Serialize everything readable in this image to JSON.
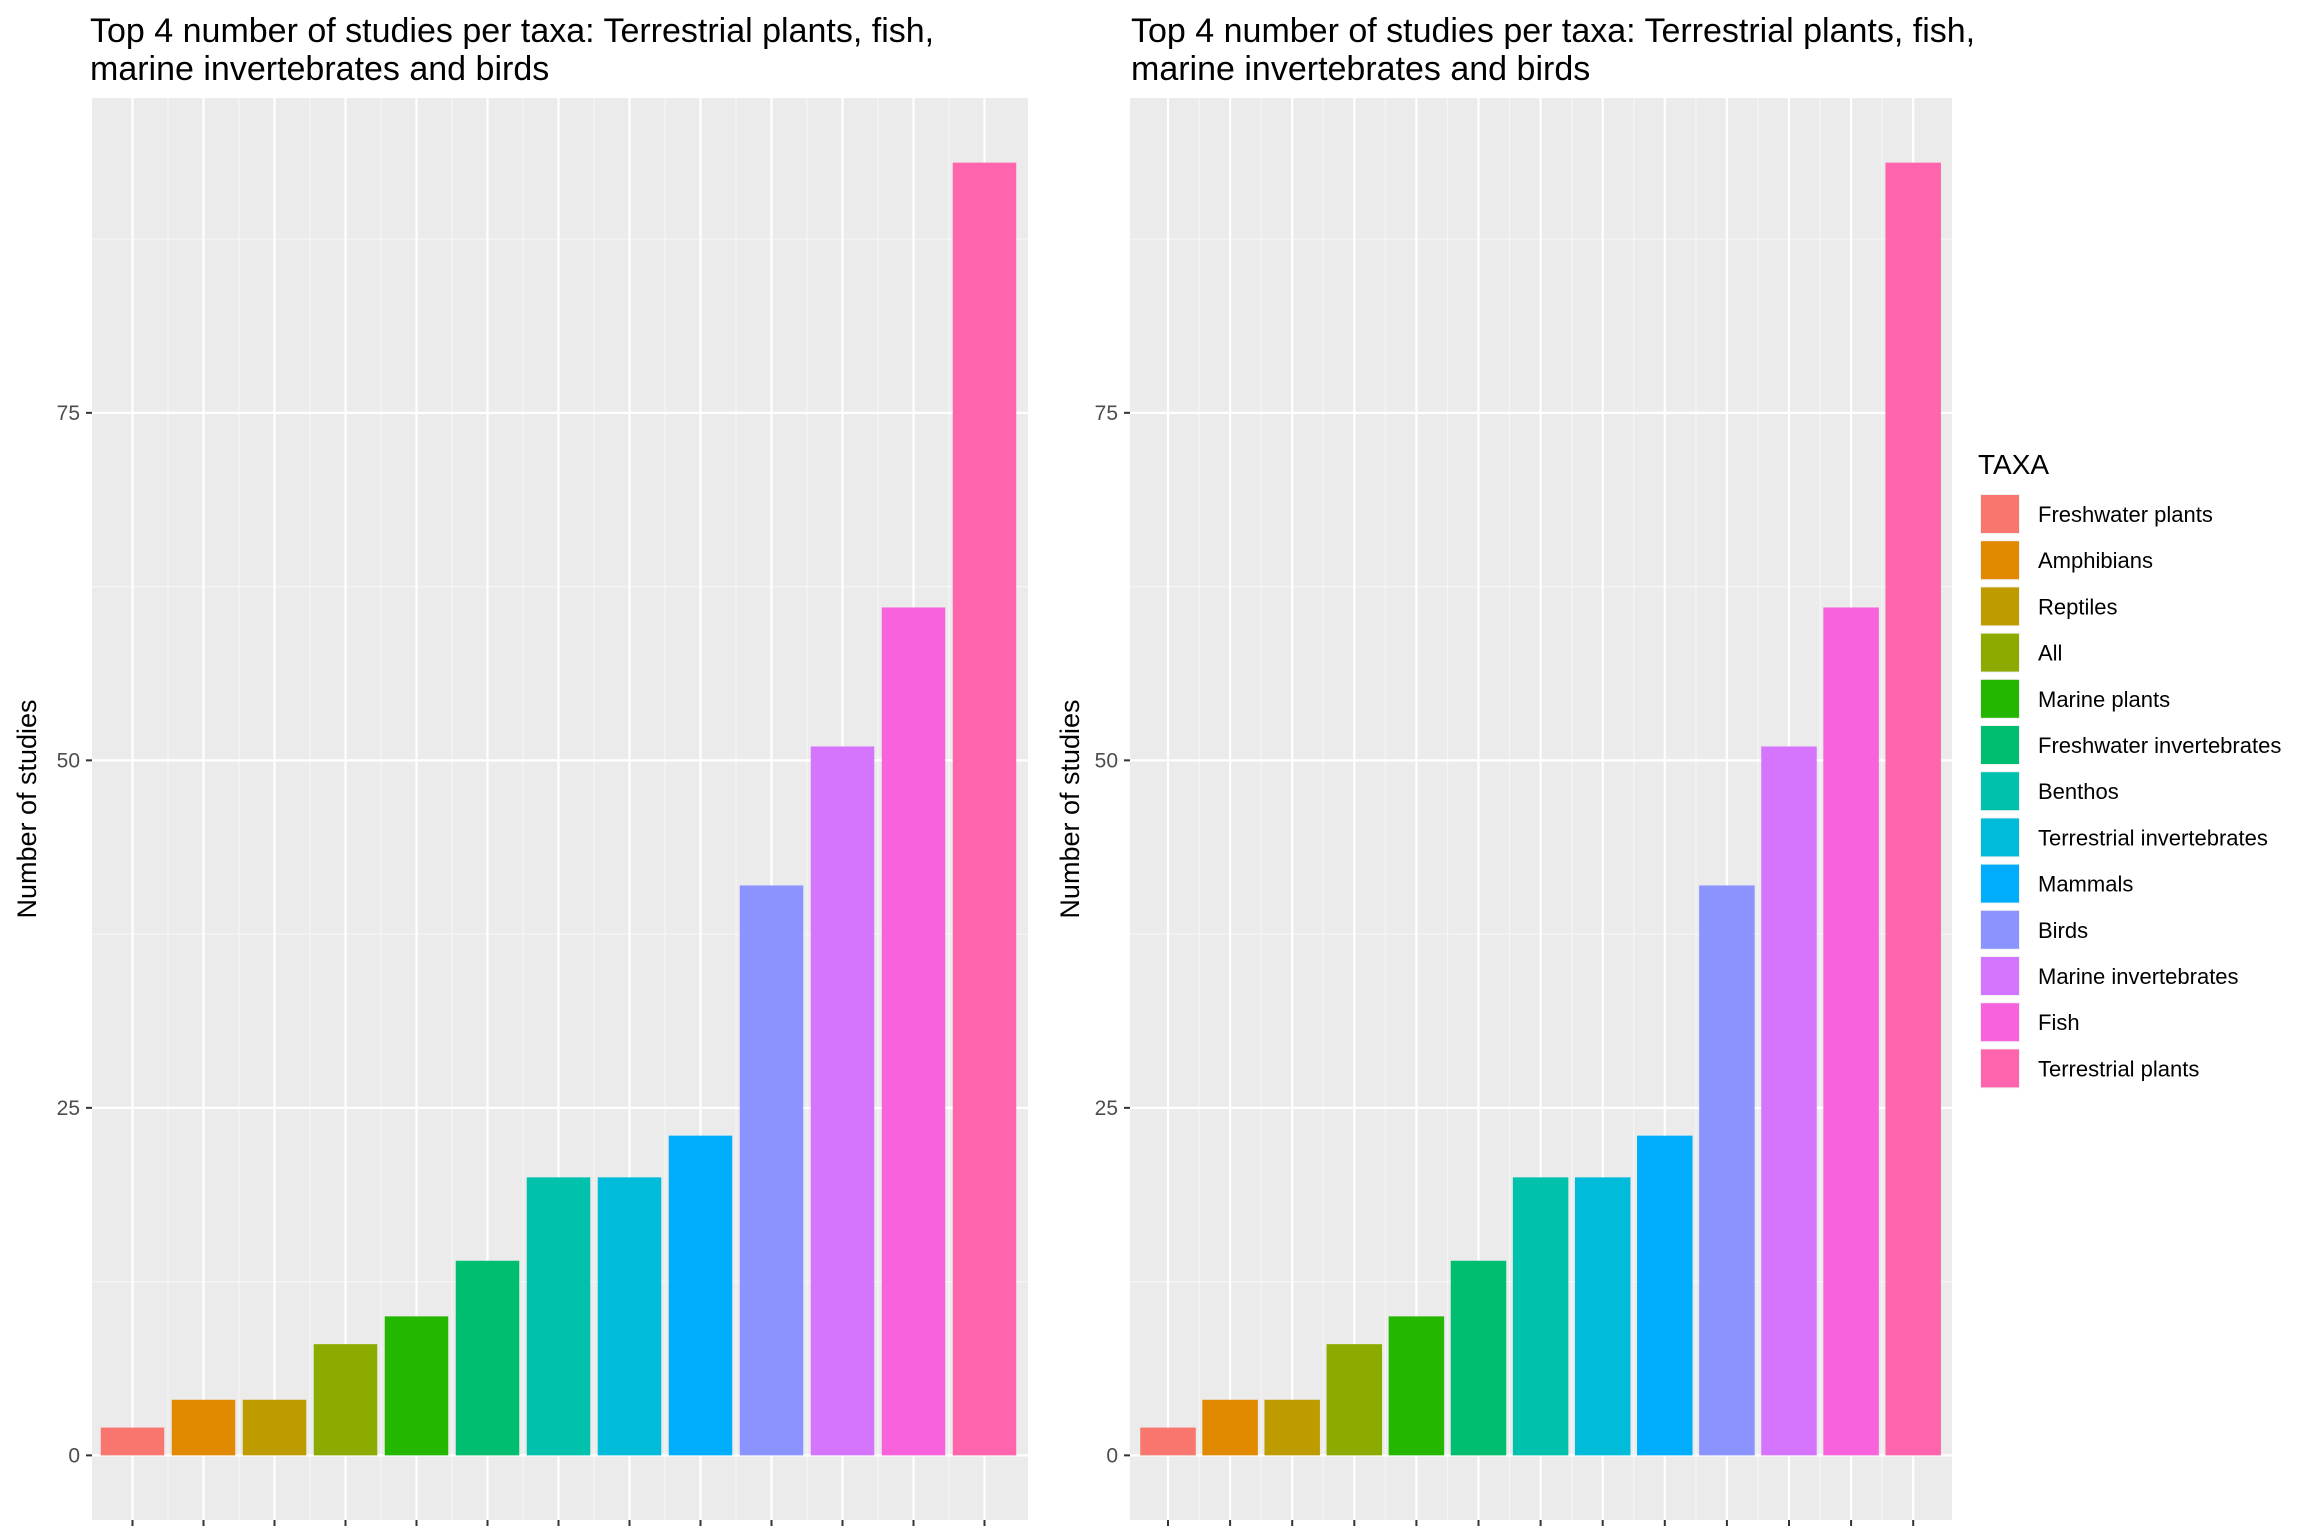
{
  "chart_data": [
    {
      "type": "bar",
      "title": "Top 4 number of studies per taxa: Terrestrial plants, fish,\nmarine invertebrates and birds",
      "xlabel": "",
      "ylabel": "Number of studies",
      "categories": [
        "Freshwater plants",
        "Amphibians",
        "Reptiles",
        "All",
        "Marine plants",
        "Freshwater invertebrates",
        "Benthos",
        "Terrestrial invertebrates",
        "Mammals",
        "Birds",
        "Marine invertebrates",
        "Fish",
        "Terrestrial plants"
      ],
      "values": [
        2,
        4,
        4,
        8,
        10,
        14,
        20,
        20,
        23,
        41,
        51,
        61,
        93
      ],
      "ylim": [
        -4.65,
        97.65
      ],
      "yticks": [
        0,
        25,
        50,
        75
      ],
      "grid": true,
      "legend": null
    },
    {
      "type": "bar",
      "title": "Top 4 number of studies per taxa: Terrestrial plants, fish,\nmarine invertebrates and birds",
      "xlabel": "",
      "ylabel": "Number of studies",
      "categories": [
        "Freshwater plants",
        "Amphibians",
        "Reptiles",
        "All",
        "Marine plants",
        "Freshwater invertebrates",
        "Benthos",
        "Terrestrial invertebrates",
        "Mammals",
        "Birds",
        "Marine invertebrates",
        "Fish",
        "Terrestrial plants"
      ],
      "values": [
        2,
        4,
        4,
        8,
        10,
        14,
        20,
        20,
        23,
        41,
        51,
        61,
        93
      ],
      "ylim": [
        -4.65,
        97.65
      ],
      "yticks": [
        0,
        25,
        50,
        75
      ],
      "grid": true,
      "legend": "right"
    }
  ],
  "legend": {
    "title": "TAXA",
    "items": [
      "Freshwater plants",
      "Amphibians",
      "Reptiles",
      "All",
      "Marine plants",
      "Freshwater invertebrates",
      "Benthos",
      "Terrestrial invertebrates",
      "Mammals",
      "Birds",
      "Marine invertebrates",
      "Fish",
      "Terrestrial plants"
    ]
  },
  "colors": {
    "panel_background": "#EBEBEB",
    "grid_major": "#FFFFFF",
    "grid_minor": "#F5F5F5",
    "tick_label": "#4D4D4D",
    "bar_fills": [
      "#F8766D",
      "#E18A00",
      "#BE9C00",
      "#8CAB00",
      "#24B700",
      "#00BE70",
      "#00C1AB",
      "#00BBDA",
      "#00ACFC",
      "#8B93FF",
      "#D575FE",
      "#F962DD",
      "#FF65AC"
    ]
  }
}
